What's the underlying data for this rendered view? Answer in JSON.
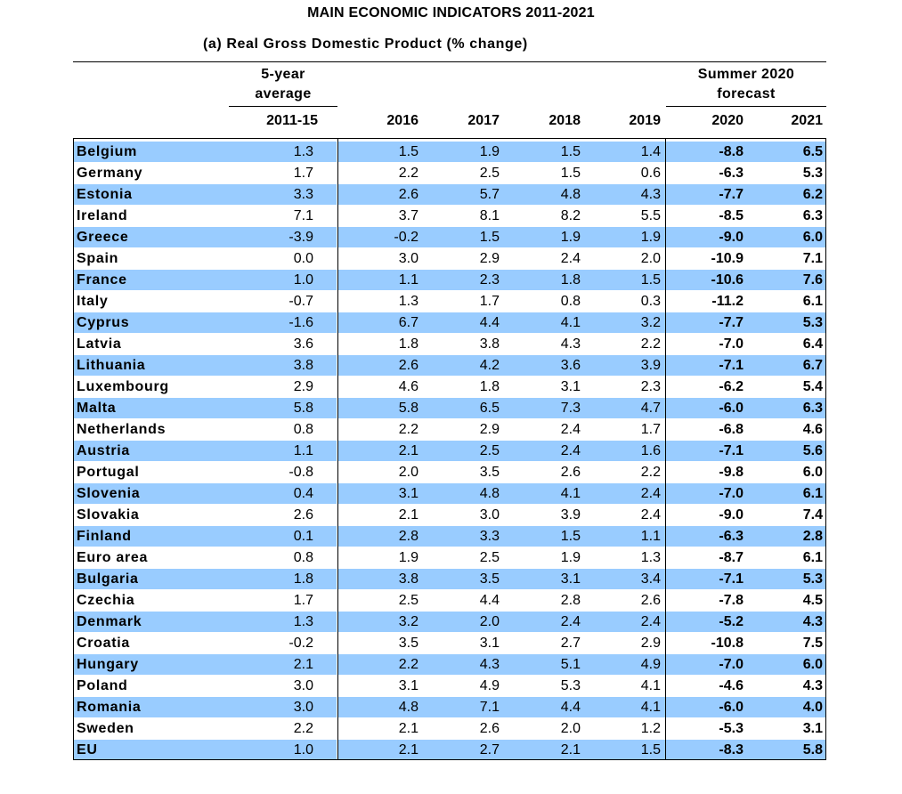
{
  "title": "MAIN ECONOMIC INDICATORS 2011-2021",
  "subtitle": "(a) Real Gross Domestic Product (% change)",
  "header": {
    "avg_line1": "5-year",
    "avg_line2": "average",
    "forecast_line1": "Summer 2020",
    "forecast_line2": "forecast",
    "years": [
      "2011-15",
      "2016",
      "2017",
      "2018",
      "2019",
      "2020",
      "2021"
    ]
  },
  "colors": {
    "row_highlight": "#99ccff"
  },
  "rows": [
    {
      "name": "Belgium",
      "values": [
        "1.3",
        "1.5",
        "1.9",
        "1.5",
        "1.4",
        "-8.8",
        "6.5"
      ]
    },
    {
      "name": "Germany",
      "values": [
        "1.7",
        "2.2",
        "2.5",
        "1.5",
        "0.6",
        "-6.3",
        "5.3"
      ]
    },
    {
      "name": "Estonia",
      "values": [
        "3.3",
        "2.6",
        "5.7",
        "4.8",
        "4.3",
        "-7.7",
        "6.2"
      ]
    },
    {
      "name": "Ireland",
      "values": [
        "7.1",
        "3.7",
        "8.1",
        "8.2",
        "5.5",
        "-8.5",
        "6.3"
      ]
    },
    {
      "name": "Greece",
      "values": [
        "-3.9",
        "-0.2",
        "1.5",
        "1.9",
        "1.9",
        "-9.0",
        "6.0"
      ]
    },
    {
      "name": "Spain",
      "values": [
        "0.0",
        "3.0",
        "2.9",
        "2.4",
        "2.0",
        "-10.9",
        "7.1"
      ]
    },
    {
      "name": "France",
      "values": [
        "1.0",
        "1.1",
        "2.3",
        "1.8",
        "1.5",
        "-10.6",
        "7.6"
      ]
    },
    {
      "name": "Italy",
      "values": [
        "-0.7",
        "1.3",
        "1.7",
        "0.8",
        "0.3",
        "-11.2",
        "6.1"
      ]
    },
    {
      "name": "Cyprus",
      "values": [
        "-1.6",
        "6.7",
        "4.4",
        "4.1",
        "3.2",
        "-7.7",
        "5.3"
      ]
    },
    {
      "name": "Latvia",
      "values": [
        "3.6",
        "1.8",
        "3.8",
        "4.3",
        "2.2",
        "-7.0",
        "6.4"
      ]
    },
    {
      "name": "Lithuania",
      "values": [
        "3.8",
        "2.6",
        "4.2",
        "3.6",
        "3.9",
        "-7.1",
        "6.7"
      ]
    },
    {
      "name": "Luxembourg",
      "values": [
        "2.9",
        "4.6",
        "1.8",
        "3.1",
        "2.3",
        "-6.2",
        "5.4"
      ]
    },
    {
      "name": "Malta",
      "values": [
        "5.8",
        "5.8",
        "6.5",
        "7.3",
        "4.7",
        "-6.0",
        "6.3"
      ]
    },
    {
      "name": "Netherlands",
      "values": [
        "0.8",
        "2.2",
        "2.9",
        "2.4",
        "1.7",
        "-6.8",
        "4.6"
      ]
    },
    {
      "name": "Austria",
      "values": [
        "1.1",
        "2.1",
        "2.5",
        "2.4",
        "1.6",
        "-7.1",
        "5.6"
      ]
    },
    {
      "name": "Portugal",
      "values": [
        "-0.8",
        "2.0",
        "3.5",
        "2.6",
        "2.2",
        "-9.8",
        "6.0"
      ]
    },
    {
      "name": "Slovenia",
      "values": [
        "0.4",
        "3.1",
        "4.8",
        "4.1",
        "2.4",
        "-7.0",
        "6.1"
      ]
    },
    {
      "name": "Slovakia",
      "values": [
        "2.6",
        "2.1",
        "3.0",
        "3.9",
        "2.4",
        "-9.0",
        "7.4"
      ]
    },
    {
      "name": "Finland",
      "values": [
        "0.1",
        "2.8",
        "3.3",
        "1.5",
        "1.1",
        "-6.3",
        "2.8"
      ]
    },
    {
      "name": "Euro area",
      "values": [
        "0.8",
        "1.9",
        "2.5",
        "1.9",
        "1.3",
        "-8.7",
        "6.1"
      ]
    },
    {
      "name": "Bulgaria",
      "values": [
        "1.8",
        "3.8",
        "3.5",
        "3.1",
        "3.4",
        "-7.1",
        "5.3"
      ]
    },
    {
      "name": "Czechia",
      "values": [
        "1.7",
        "2.5",
        "4.4",
        "2.8",
        "2.6",
        "-7.8",
        "4.5"
      ]
    },
    {
      "name": "Denmark",
      "values": [
        "1.3",
        "3.2",
        "2.0",
        "2.4",
        "2.4",
        "-5.2",
        "4.3"
      ]
    },
    {
      "name": "Croatia",
      "values": [
        "-0.2",
        "3.5",
        "3.1",
        "2.7",
        "2.9",
        "-10.8",
        "7.5"
      ]
    },
    {
      "name": "Hungary",
      "values": [
        "2.1",
        "2.2",
        "4.3",
        "5.1",
        "4.9",
        "-7.0",
        "6.0"
      ]
    },
    {
      "name": "Poland",
      "values": [
        "3.0",
        "3.1",
        "4.9",
        "5.3",
        "4.1",
        "-4.6",
        "4.3"
      ]
    },
    {
      "name": "Romania",
      "values": [
        "3.0",
        "4.8",
        "7.1",
        "4.4",
        "4.1",
        "-6.0",
        "4.0"
      ]
    },
    {
      "name": "Sweden",
      "values": [
        "2.2",
        "2.1",
        "2.6",
        "2.0",
        "1.2",
        "-5.3",
        "3.1"
      ]
    },
    {
      "name": "EU",
      "values": [
        "1.0",
        "2.1",
        "2.7",
        "2.1",
        "1.5",
        "-8.3",
        "5.8"
      ]
    }
  ]
}
